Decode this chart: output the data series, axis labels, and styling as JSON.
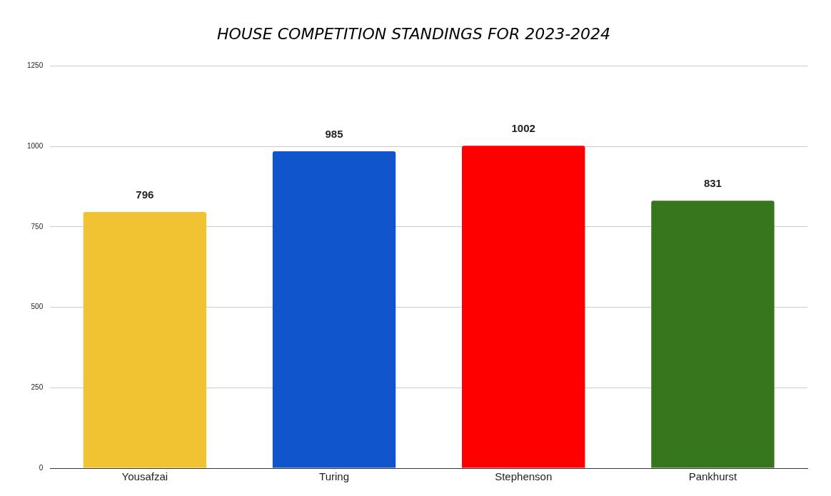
{
  "chart_data": {
    "type": "bar",
    "title": "HOUSE COMPETITION STANDINGS FOR 2023-2024",
    "categories": [
      "Yousafzai",
      "Turing",
      "Stephenson",
      "Pankhurst"
    ],
    "values": [
      796,
      985,
      1002,
      831
    ],
    "colors": [
      "#f1c232",
      "#1155cc",
      "#ff0000",
      "#38761d"
    ],
    "ylim": [
      0,
      1250
    ],
    "yticks": [
      0,
      250,
      500,
      750,
      1000,
      1250
    ],
    "grid": "y",
    "data_labels": true,
    "legend": false
  }
}
